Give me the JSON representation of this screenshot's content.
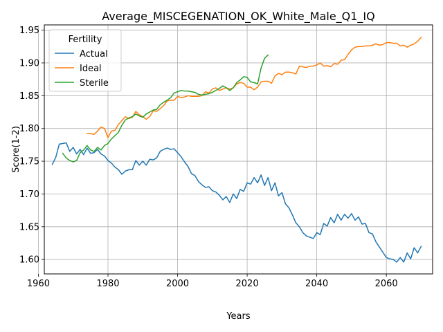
{
  "chart_data": {
    "type": "line",
    "title": "Average_MISCEGENATION_OK_White_Male_Q1_IQ",
    "xlabel": "Years",
    "ylabel": "Score(1-2)",
    "xlim": [
      1961.7,
      2073.3
    ],
    "ylim": [
      1.578,
      1.958
    ],
    "xticks": [
      1960,
      1980,
      2000,
      2020,
      2040,
      2060
    ],
    "yticks": [
      1.6,
      1.65,
      1.7,
      1.75,
      1.8,
      1.85,
      1.9,
      1.95
    ],
    "grid": true,
    "legend": {
      "title": "Fertility",
      "placement": "upper left"
    },
    "series": [
      {
        "name": "Actual",
        "color": "#1f77b4",
        "x": [
          1964,
          1965,
          1966,
          1967,
          1968,
          1969,
          1970,
          1971,
          1972,
          1973,
          1974,
          1975,
          1976,
          1977,
          1978,
          1979,
          1980,
          1981,
          1982,
          1983,
          1984,
          1985,
          1986,
          1987,
          1988,
          1989,
          1990,
          1991,
          1992,
          1993,
          1994,
          1995,
          1996,
          1997,
          1998,
          1999,
          2000,
          2001,
          2002,
          2003,
          2004,
          2005,
          2006,
          2007,
          2008,
          2009,
          2010,
          2011,
          2012,
          2013,
          2014,
          2015,
          2016,
          2017,
          2018,
          2019,
          2020,
          2021,
          2022,
          2023,
          2024,
          2025,
          2026,
          2027,
          2028,
          2029,
          2030,
          2031,
          2032,
          2033,
          2034,
          2035,
          2036,
          2037,
          2038,
          2039,
          2040,
          2041,
          2042,
          2043,
          2044,
          2045,
          2046,
          2047,
          2048,
          2049,
          2050,
          2051,
          2052,
          2053,
          2054,
          2055,
          2056,
          2057,
          2058,
          2059,
          2060,
          2061,
          2062,
          2063,
          2064,
          2065,
          2066,
          2067,
          2068,
          2069,
          2070
        ],
        "y": [
          1.745,
          1.756,
          1.776,
          1.777,
          1.778,
          1.765,
          1.771,
          1.761,
          1.768,
          1.76,
          1.77,
          1.762,
          1.763,
          1.768,
          1.761,
          1.758,
          1.751,
          1.747,
          1.741,
          1.737,
          1.73,
          1.735,
          1.737,
          1.737,
          1.751,
          1.744,
          1.75,
          1.744,
          1.753,
          1.752,
          1.755,
          1.765,
          1.768,
          1.77,
          1.768,
          1.769,
          1.763,
          1.757,
          1.749,
          1.742,
          1.731,
          1.728,
          1.719,
          1.714,
          1.71,
          1.711,
          1.705,
          1.703,
          1.698,
          1.691,
          1.696,
          1.687,
          1.7,
          1.693,
          1.707,
          1.704,
          1.717,
          1.715,
          1.725,
          1.717,
          1.729,
          1.713,
          1.725,
          1.705,
          1.717,
          1.697,
          1.702,
          1.685,
          1.679,
          1.668,
          1.656,
          1.65,
          1.641,
          1.636,
          1.634,
          1.632,
          1.641,
          1.638,
          1.655,
          1.651,
          1.664,
          1.656,
          1.669,
          1.66,
          1.669,
          1.663,
          1.67,
          1.66,
          1.665,
          1.654,
          1.655,
          1.641,
          1.639,
          1.627,
          1.619,
          1.611,
          1.603,
          1.601,
          1.6,
          1.596,
          1.603,
          1.596,
          1.61,
          1.601,
          1.618,
          1.61,
          1.62
        ]
      },
      {
        "name": "Ideal",
        "color": "#ff7f0e",
        "x": [
          1974,
          1975,
          1976,
          1977,
          1978,
          1979,
          1980,
          1981,
          1982,
          1983,
          1984,
          1985,
          1986,
          1987,
          1988,
          1989,
          1990,
          1991,
          1992,
          1993,
          1994,
          1995,
          1996,
          1997,
          1998,
          1999,
          2000,
          2001,
          2002,
          2003,
          2004,
          2005,
          2006,
          2007,
          2008,
          2009,
          2010,
          2011,
          2012,
          2013,
          2014,
          2015,
          2016,
          2017,
          2018,
          2019,
          2020,
          2021,
          2022,
          2023,
          2024,
          2025,
          2026,
          2027,
          2028,
          2029,
          2030,
          2031,
          2032,
          2033,
          2034,
          2035,
          2036,
          2037,
          2038,
          2039,
          2040,
          2041,
          2042,
          2043,
          2044,
          2045,
          2046,
          2047,
          2048,
          2049,
          2050,
          2051,
          2052,
          2053,
          2054,
          2055,
          2056,
          2057,
          2058,
          2059,
          2060,
          2061,
          2062,
          2063,
          2064,
          2065,
          2066,
          2067,
          2068,
          2069,
          2070
        ],
        "y": [
          1.792,
          1.792,
          1.791,
          1.796,
          1.802,
          1.8,
          1.786,
          1.796,
          1.797,
          1.806,
          1.812,
          1.818,
          1.815,
          1.817,
          1.826,
          1.821,
          1.818,
          1.814,
          1.818,
          1.827,
          1.826,
          1.83,
          1.835,
          1.842,
          1.843,
          1.843,
          1.849,
          1.847,
          1.848,
          1.85,
          1.849,
          1.849,
          1.849,
          1.85,
          1.856,
          1.854,
          1.86,
          1.862,
          1.858,
          1.86,
          1.862,
          1.86,
          1.862,
          1.868,
          1.87,
          1.869,
          1.863,
          1.863,
          1.859,
          1.863,
          1.871,
          1.872,
          1.872,
          1.869,
          1.88,
          1.884,
          1.882,
          1.886,
          1.886,
          1.885,
          1.883,
          1.895,
          1.894,
          1.893,
          1.895,
          1.895,
          1.897,
          1.9,
          1.895,
          1.896,
          1.894,
          1.899,
          1.898,
          1.904,
          1.905,
          1.913,
          1.92,
          1.924,
          1.925,
          1.925,
          1.926,
          1.926,
          1.927,
          1.929,
          1.927,
          1.928,
          1.931,
          1.931,
          1.93,
          1.93,
          1.926,
          1.927,
          1.924,
          1.927,
          1.929,
          1.933,
          1.939
        ]
      },
      {
        "name": "Sterile",
        "color": "#2ca02c",
        "x": [
          1967,
          1968,
          1969,
          1970,
          1971,
          1972,
          1973,
          1974,
          1975,
          1976,
          1977,
          1978,
          1979,
          1980,
          1981,
          1982,
          1983,
          1984,
          1985,
          1986,
          1987,
          1988,
          1989,
          1990,
          1991,
          1992,
          1993,
          1994,
          1995,
          1996,
          1997,
          1998,
          1999,
          2000,
          2001,
          2002,
          2003,
          2004,
          2005,
          2006,
          2007,
          2008,
          2009,
          2010,
          2011,
          2012,
          2013,
          2014,
          2015,
          2016,
          2017,
          2018,
          2019,
          2020,
          2021,
          2022,
          2023,
          2024,
          2025,
          2026
        ],
        "y": [
          1.762,
          1.755,
          1.751,
          1.749,
          1.751,
          1.763,
          1.767,
          1.774,
          1.767,
          1.765,
          1.771,
          1.767,
          1.774,
          1.777,
          1.784,
          1.789,
          1.794,
          1.805,
          1.813,
          1.816,
          1.818,
          1.822,
          1.819,
          1.817,
          1.822,
          1.825,
          1.828,
          1.829,
          1.836,
          1.84,
          1.843,
          1.847,
          1.854,
          1.856,
          1.858,
          1.857,
          1.857,
          1.856,
          1.855,
          1.852,
          1.851,
          1.852,
          1.853,
          1.855,
          1.858,
          1.861,
          1.865,
          1.862,
          1.858,
          1.862,
          1.87,
          1.874,
          1.879,
          1.878,
          1.871,
          1.87,
          1.868,
          1.892,
          1.907,
          1.912
        ]
      }
    ]
  }
}
